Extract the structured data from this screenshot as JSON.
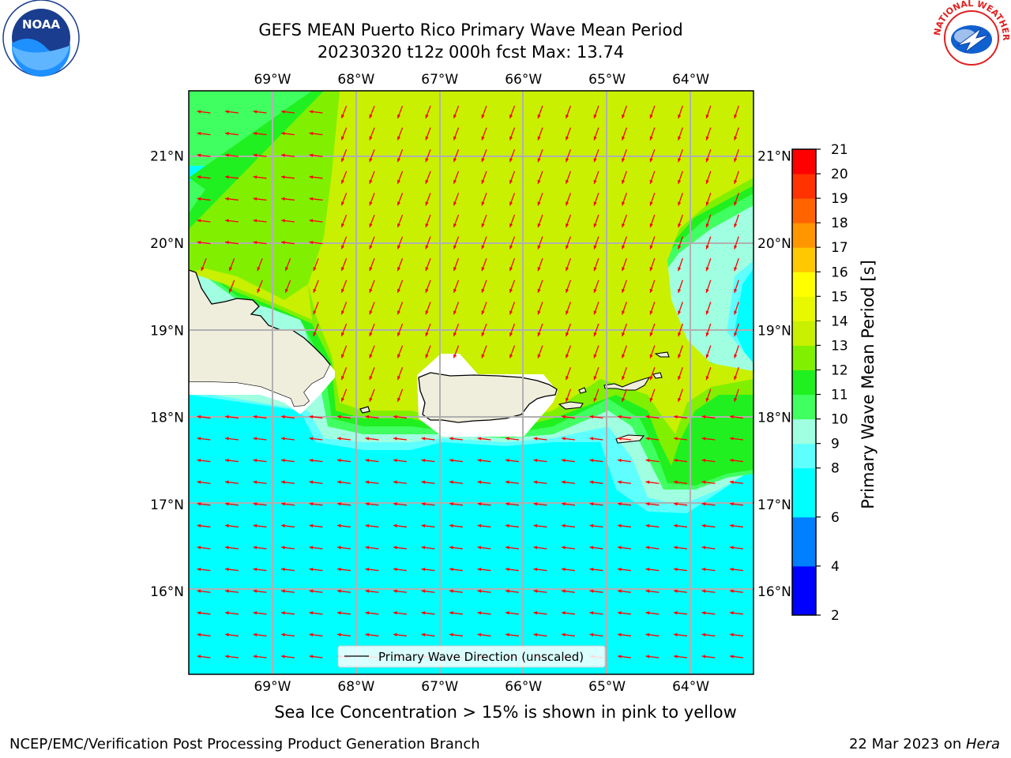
{
  "title": {
    "line1": "GEFS MEAN Puerto Rico Primary Wave Mean Period",
    "line2": "20230320 t12z 000h fcst   Max: 13.74"
  },
  "subtitle": "Sea Ice Concentration > 15% is shown in pink to yellow",
  "footer": {
    "left": "NCEP/EMC/Verification Post Processing Product Generation Branch",
    "right_date": "22 Mar 2023 on ",
    "right_host": "Hera"
  },
  "legend": {
    "label": "Primary Wave Direction (unscaled)"
  },
  "logos": {
    "left": "NOAA",
    "right": "NATIONAL WEATHER SERVICE"
  },
  "map": {
    "lon_ticks": [
      "69°W",
      "68°W",
      "67°W",
      "66°W",
      "65°W",
      "64°W"
    ],
    "lat_ticks": [
      "21°N",
      "20°N",
      "19°N",
      "18°N",
      "17°N",
      "16°N"
    ],
    "lon_values": [
      -69,
      -68,
      -67,
      -66,
      -65,
      -64
    ],
    "lat_values": [
      21,
      20,
      19,
      18,
      17,
      16
    ],
    "lon_range": [
      -70,
      -63.25
    ],
    "lat_range": [
      15.05,
      21.75
    ],
    "arrow_color": "#ff0000"
  },
  "colorbar": {
    "label": "Primary Wave Mean Period [s]",
    "levels": [
      "2",
      "4",
      "6",
      "8",
      "9",
      "10",
      "11",
      "12",
      "13",
      "14",
      "15",
      "16",
      "17",
      "18",
      "19",
      "20",
      "21"
    ],
    "level_values": [
      2,
      4,
      6,
      8,
      9,
      10,
      11,
      12,
      13,
      14,
      15,
      16,
      17,
      18,
      19,
      20,
      21
    ],
    "colors": [
      "#0000ff",
      "#0080ff",
      "#00ffff",
      "#60ffff",
      "#a0ffe0",
      "#40ff60",
      "#20f020",
      "#80f000",
      "#c8f000",
      "#e8f800",
      "#ffff00",
      "#ffc800",
      "#ff9600",
      "#ff6400",
      "#ff3200",
      "#ff0000"
    ]
  }
}
